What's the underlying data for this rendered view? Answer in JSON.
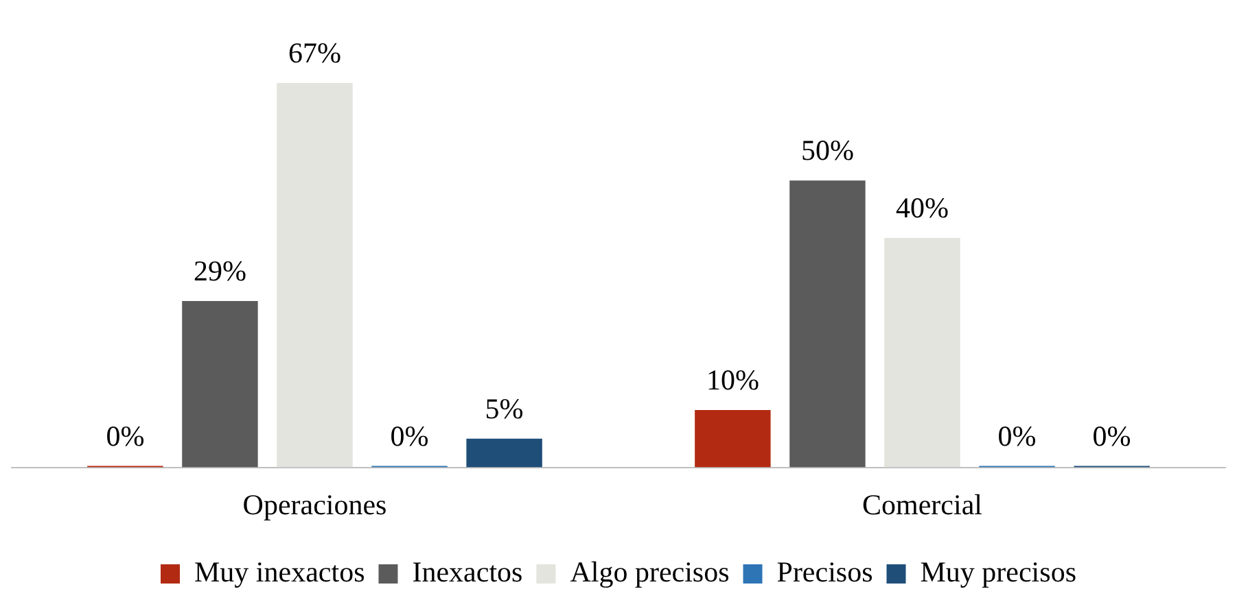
{
  "chart_data": {
    "type": "bar",
    "categories": [
      "Operaciones",
      "Comercial"
    ],
    "series": [
      {
        "name": "Muy inexactos",
        "color": "#b22a12",
        "values": [
          0,
          10
        ],
        "value_labels": [
          "0%",
          "10%"
        ]
      },
      {
        "name": "Inexactos",
        "color": "#5b5b5b",
        "values": [
          29,
          50
        ],
        "value_labels": [
          "29%",
          "50%"
        ]
      },
      {
        "name": "Algo precisos",
        "color": "#e3e4de",
        "values": [
          67,
          40
        ],
        "value_labels": [
          "67%",
          "40%"
        ]
      },
      {
        "name": "Precisos",
        "color": "#2e75b6",
        "values": [
          0,
          0
        ],
        "value_labels": [
          "0%",
          "0%"
        ]
      },
      {
        "name": "Muy precisos",
        "color": "#1f4e79",
        "values": [
          5,
          0
        ],
        "value_labels": [
          "5%",
          "0%"
        ]
      }
    ],
    "legend": "bottom",
    "grid": false,
    "tick_labels": "x"
  }
}
